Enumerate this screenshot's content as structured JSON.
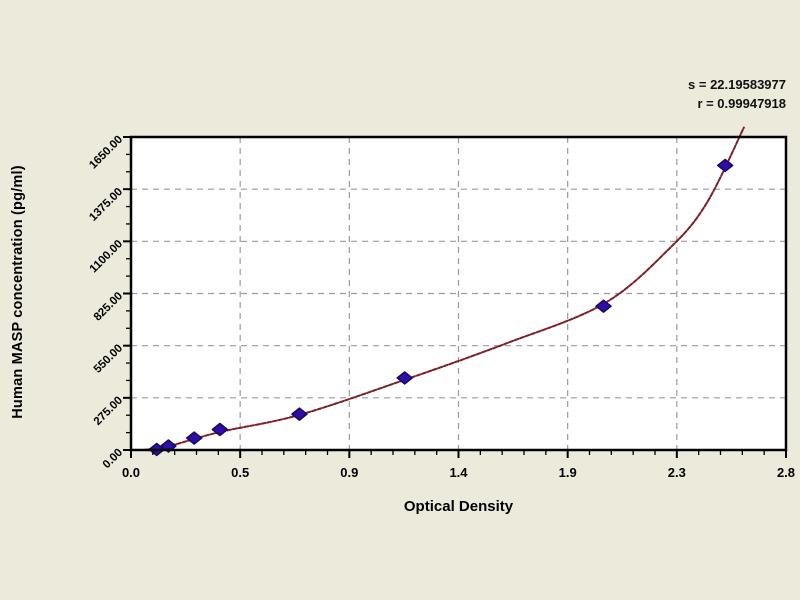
{
  "background_color": "#eceadb",
  "plot": {
    "bg": "#ffffff",
    "border_color": "#000000",
    "grid_color": "#9a9a9a"
  },
  "titles": {
    "x": "Optical Density",
    "y": "Human MASP concentration (pg/ml)"
  },
  "stats": {
    "s_label": "s = 22.19583977",
    "r_label": "r = 0.99947918"
  },
  "chart_data": {
    "type": "scatter",
    "title": "",
    "xlabel": "Optical Density",
    "ylabel": "Human MASP concentration (pg/ml)",
    "xlim": [
      0,
      2.8
    ],
    "ylim": [
      0,
      1650
    ],
    "grid": "dashed",
    "legend": "none",
    "x_tick_labels": [
      "0.0",
      "0.5",
      "0.9",
      "1.4",
      "1.9",
      "2.3",
      "2.8"
    ],
    "y_tick_labels": [
      "0.00",
      "275.00",
      "550.00",
      "825.00",
      "1100.00",
      "1375.00",
      "1650.00"
    ],
    "x_minor_per_major": 5,
    "y_minor_per_major": 3,
    "series": [
      {
        "name": "standards",
        "marker": "diamond",
        "color": "#2e0da8",
        "edge_color": "#190763",
        "points": [
          {
            "x": 0.11,
            "y": 3
          },
          {
            "x": 0.16,
            "y": 21
          },
          {
            "x": 0.27,
            "y": 63
          },
          {
            "x": 0.38,
            "y": 108
          },
          {
            "x": 0.72,
            "y": 189
          },
          {
            "x": 1.17,
            "y": 380
          },
          {
            "x": 2.02,
            "y": 758
          },
          {
            "x": 2.54,
            "y": 1500
          }
        ]
      }
    ],
    "fit_curve": {
      "name": "fitted-standard-curve",
      "color": "#7d1f26",
      "s": 22.19583977,
      "r": 0.99947918,
      "anchors": [
        {
          "x": 0.05,
          "y": 0
        },
        {
          "x": 0.16,
          "y": 20
        },
        {
          "x": 0.38,
          "y": 95
        },
        {
          "x": 0.72,
          "y": 185
        },
        {
          "x": 1.17,
          "y": 370
        },
        {
          "x": 1.6,
          "y": 560
        },
        {
          "x": 2.02,
          "y": 770
        },
        {
          "x": 2.3,
          "y": 1060
        },
        {
          "x": 2.46,
          "y": 1300
        },
        {
          "x": 2.62,
          "y": 1700
        }
      ]
    }
  }
}
